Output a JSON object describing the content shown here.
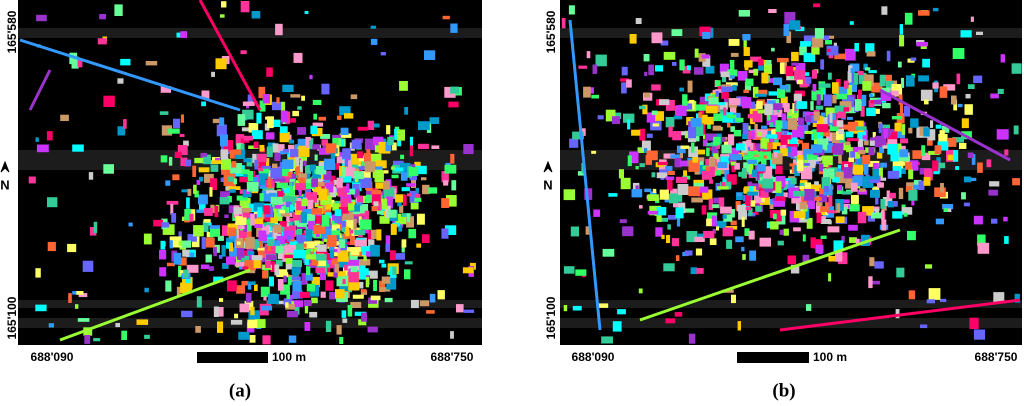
{
  "panels": [
    {
      "label": "(a)",
      "north": "N",
      "y_top": "165'580",
      "y_bottom": "165'100",
      "x_left": "688'090",
      "x_right": "688'750",
      "scale": "100 m"
    },
    {
      "label": "(b)",
      "north": "N",
      "y_top": "165'580",
      "y_bottom": "165'100",
      "x_left": "688'090",
      "x_right": "688'750",
      "scale": "100 m"
    }
  ]
}
